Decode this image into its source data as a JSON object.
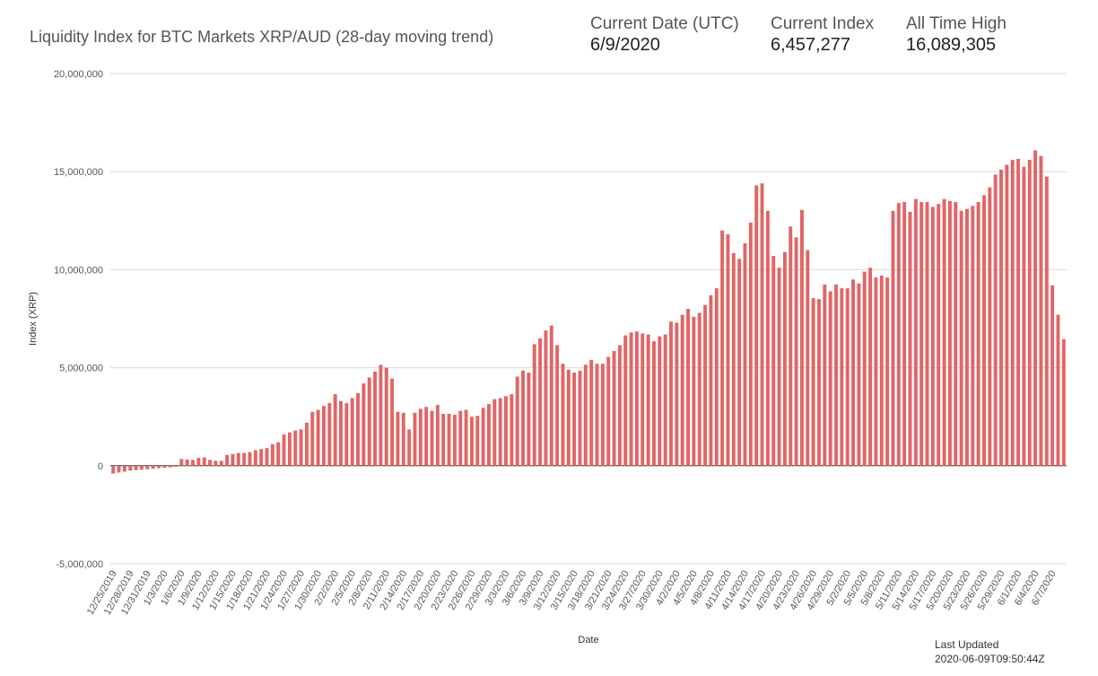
{
  "header": {
    "title": "Liquidity Index for BTC Markets XRP/AUD (28-day moving trend)",
    "stats": [
      {
        "label": "Current Date (UTC)",
        "value": "6/9/2020"
      },
      {
        "label": "Current Index",
        "value": "6,457,277"
      },
      {
        "label": "All Time High",
        "value": "16,089,305"
      }
    ]
  },
  "footer": {
    "updated_label": "Last Updated",
    "updated_value": "2020-06-09T09:50:44Z"
  },
  "chart_data": {
    "type": "bar",
    "title": "Liquidity Index for BTC Markets XRP/AUD (28-day moving trend)",
    "xlabel": "Date",
    "ylabel": "Index (XRP)",
    "ylim": [
      -5000000,
      20000000
    ],
    "yticks": [
      -5000000,
      0,
      5000000,
      10000000,
      15000000,
      20000000
    ],
    "ytick_labels": [
      "-5,000,000",
      "0",
      "5,000,000",
      "10,000,000",
      "15,000,000",
      "20,000,000"
    ],
    "grid": true,
    "bar_color": "#e06666",
    "categories": [
      "12/25/2019",
      "12/26/2019",
      "12/27/2019",
      "12/28/2019",
      "12/29/2019",
      "12/30/2019",
      "12/31/2019",
      "1/1/2020",
      "1/2/2020",
      "1/3/2020",
      "1/4/2020",
      "1/5/2020",
      "1/6/2020",
      "1/7/2020",
      "1/8/2020",
      "1/9/2020",
      "1/10/2020",
      "1/11/2020",
      "1/12/2020",
      "1/13/2020",
      "1/14/2020",
      "1/15/2020",
      "1/16/2020",
      "1/17/2020",
      "1/18/2020",
      "1/19/2020",
      "1/20/2020",
      "1/21/2020",
      "1/22/2020",
      "1/23/2020",
      "1/24/2020",
      "1/25/2020",
      "1/26/2020",
      "1/27/2020",
      "1/28/2020",
      "1/29/2020",
      "1/30/2020",
      "1/31/2020",
      "2/1/2020",
      "2/2/2020",
      "2/3/2020",
      "2/4/2020",
      "2/5/2020",
      "2/6/2020",
      "2/7/2020",
      "2/8/2020",
      "2/9/2020",
      "2/10/2020",
      "2/11/2020",
      "2/12/2020",
      "2/13/2020",
      "2/14/2020",
      "2/15/2020",
      "2/16/2020",
      "2/17/2020",
      "2/18/2020",
      "2/19/2020",
      "2/20/2020",
      "2/21/2020",
      "2/22/2020",
      "2/23/2020",
      "2/24/2020",
      "2/25/2020",
      "2/26/2020",
      "2/27/2020",
      "2/28/2020",
      "2/29/2020",
      "3/1/2020",
      "3/2/2020",
      "3/3/2020",
      "3/4/2020",
      "3/5/2020",
      "3/6/2020",
      "3/7/2020",
      "3/8/2020",
      "3/9/2020",
      "3/10/2020",
      "3/11/2020",
      "3/12/2020",
      "3/13/2020",
      "3/14/2020",
      "3/15/2020",
      "3/16/2020",
      "3/17/2020",
      "3/18/2020",
      "3/19/2020",
      "3/20/2020",
      "3/21/2020",
      "3/22/2020",
      "3/23/2020",
      "3/24/2020",
      "3/25/2020",
      "3/26/2020",
      "3/27/2020",
      "3/28/2020",
      "3/29/2020",
      "3/30/2020",
      "3/31/2020",
      "4/1/2020",
      "4/2/2020",
      "4/3/2020",
      "4/4/2020",
      "4/5/2020",
      "4/6/2020",
      "4/7/2020",
      "4/8/2020",
      "4/9/2020",
      "4/10/2020",
      "4/11/2020",
      "4/12/2020",
      "4/13/2020",
      "4/14/2020",
      "4/15/2020",
      "4/16/2020",
      "4/17/2020",
      "4/18/2020",
      "4/19/2020",
      "4/20/2020",
      "4/21/2020",
      "4/22/2020",
      "4/23/2020",
      "4/24/2020",
      "4/25/2020",
      "4/26/2020",
      "4/27/2020",
      "4/28/2020",
      "4/29/2020",
      "4/30/2020",
      "5/1/2020",
      "5/2/2020",
      "5/3/2020",
      "5/4/2020",
      "5/5/2020",
      "5/6/2020",
      "5/7/2020",
      "5/8/2020",
      "5/9/2020",
      "5/10/2020",
      "5/11/2020",
      "5/12/2020",
      "5/13/2020",
      "5/14/2020",
      "5/15/2020",
      "5/16/2020",
      "5/17/2020",
      "5/18/2020",
      "5/19/2020",
      "5/20/2020",
      "5/21/2020",
      "5/22/2020",
      "5/23/2020",
      "5/24/2020",
      "5/25/2020",
      "5/26/2020",
      "5/27/2020",
      "5/28/2020",
      "5/29/2020",
      "5/30/2020",
      "5/31/2020",
      "6/1/2020",
      "6/2/2020",
      "6/3/2020",
      "6/4/2020",
      "6/5/2020",
      "6/6/2020",
      "6/7/2020",
      "6/8/2020",
      "6/9/2020"
    ],
    "values": [
      -400000,
      -350000,
      -300000,
      -250000,
      -220000,
      -200000,
      -180000,
      -150000,
      -120000,
      -100000,
      -80000,
      -50000,
      350000,
      320000,
      300000,
      400000,
      420000,
      300000,
      250000,
      250000,
      550000,
      600000,
      650000,
      650000,
      700000,
      800000,
      850000,
      900000,
      1100000,
      1200000,
      1600000,
      1700000,
      1800000,
      1850000,
      2200000,
      2750000,
      2850000,
      3050000,
      3200000,
      3650000,
      3300000,
      3200000,
      3450000,
      3700000,
      4200000,
      4500000,
      4800000,
      5150000,
      5000000,
      4450000,
      2750000,
      2700000,
      1850000,
      2700000,
      2900000,
      3000000,
      2800000,
      3100000,
      2650000,
      2650000,
      2600000,
      2800000,
      2850000,
      2500000,
      2550000,
      2950000,
      3150000,
      3400000,
      3450000,
      3550000,
      3650000,
      4550000,
      4850000,
      4750000,
      6200000,
      6500000,
      6900000,
      7150000,
      6150000,
      5200000,
      4900000,
      4750000,
      4850000,
      5150000,
      5400000,
      5200000,
      5200000,
      5550000,
      5850000,
      6150000,
      6650000,
      6800000,
      6850000,
      6750000,
      6700000,
      6350000,
      6600000,
      6700000,
      7350000,
      7300000,
      7700000,
      8000000,
      7600000,
      7800000,
      8200000,
      8700000,
      9050000,
      12000000,
      11800000,
      10850000,
      10550000,
      11350000,
      12400000,
      14300000,
      14400000,
      13000000,
      10700000,
      10100000,
      10900000,
      12200000,
      11650000,
      13050000,
      11000000,
      8550000,
      8500000,
      9250000,
      8900000,
      9250000,
      9050000,
      9050000,
      9500000,
      9300000,
      9900000,
      10100000,
      9600000,
      9700000,
      9600000,
      13000000,
      13400000,
      13450000,
      12950000,
      13600000,
      13450000,
      13450000,
      13200000,
      13350000,
      13600000,
      13500000,
      13450000,
      13000000,
      13100000,
      13250000,
      13450000,
      13800000,
      14200000,
      14850000,
      15100000,
      15350000,
      15600000,
      15650000,
      15250000,
      15600000,
      16089305,
      15800000,
      14750000,
      9200000,
      7700000,
      6457277
    ]
  }
}
